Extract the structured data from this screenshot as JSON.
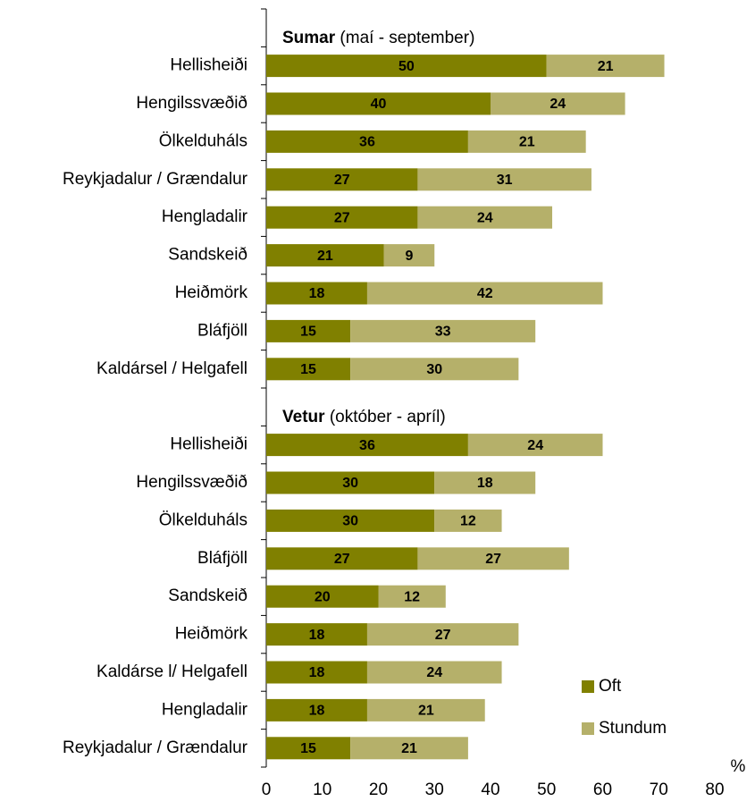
{
  "chart_data": {
    "type": "stacked-barh",
    "categories": [
      null,
      "Hellisheiði",
      "Hengilssvæðið",
      "Ölkelduháls",
      "Reykjadalur / Grændalur",
      "Hengladalir",
      "Sandskeið",
      "Heiðmörk",
      "Bláfjöll",
      "Kaldársel / Helgafell",
      null,
      "Hellisheiði",
      "Hengilssvæðið",
      "Ölkelduháls",
      "Bláfjöll",
      "Sandskeið",
      "Heiðmörk",
      "Kaldárse l/ Helgafell",
      "Hengladalir",
      "Reykjadalur / Grændalur"
    ],
    "series": [
      {
        "name": "Oft",
        "color": "#808000",
        "values": [
          null,
          50,
          40,
          36,
          27,
          27,
          21,
          18,
          15,
          15,
          null,
          36,
          30,
          30,
          27,
          20,
          18,
          18,
          18,
          15
        ]
      },
      {
        "name": "Stundum",
        "color": "#b5b06a",
        "values": [
          null,
          21,
          24,
          21,
          31,
          24,
          9,
          42,
          33,
          30,
          null,
          24,
          18,
          12,
          27,
          12,
          27,
          24,
          21,
          21
        ]
      }
    ],
    "annotations": [
      {
        "category": 0,
        "bold": "Sumar",
        "text": "(maí - september)"
      },
      {
        "category": 10,
        "bold": "Vetur",
        "text": "(október - apríl)"
      }
    ],
    "xlabel": "%",
    "xlim": [
      0,
      80
    ],
    "xticks": [
      0,
      10,
      20,
      30,
      40,
      50,
      60,
      70,
      80
    ],
    "legend": "lower right"
  }
}
